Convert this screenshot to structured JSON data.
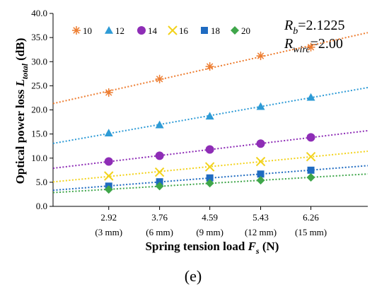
{
  "chart_data": {
    "type": "scatter",
    "x": [
      2.92,
      3.76,
      4.59,
      5.43,
      6.26
    ],
    "x_tick_labels": [
      "2.92",
      "3.76",
      "4.59",
      "5.43",
      "6.26"
    ],
    "x_tick_sublabels": [
      "(3 mm)",
      "(6 mm)",
      "(9 mm)",
      "(12 mm)",
      "(15 mm)"
    ],
    "xlim": [
      2.0,
      7.2
    ],
    "ylim": [
      0.0,
      40.0
    ],
    "y_ticks": [
      "0.0",
      "5.0",
      "10.0",
      "15.0",
      "20.0",
      "25.0",
      "30.0",
      "35.0",
      "40.0"
    ],
    "xlabel_main": "Spring tension load ",
    "xlabel_sym": "F",
    "xlabel_sub": "s",
    "xlabel_unit": " (N)",
    "ylabel_main": "Optical power loss ",
    "ylabel_sym": "L",
    "ylabel_sub": "total",
    "ylabel_unit": " (dB)",
    "grid": false,
    "trendlines": "linear, dotted",
    "legend_position": "top-left",
    "series": [
      {
        "name": "10",
        "marker": "asterisk",
        "color": "#ED7D31",
        "values": [
          23.6,
          26.4,
          29.0,
          31.2,
          33.0
        ]
      },
      {
        "name": "12",
        "marker": "triangle",
        "color": "#2E9BD6",
        "values": [
          15.2,
          16.9,
          18.7,
          20.7,
          22.6
        ]
      },
      {
        "name": "14",
        "marker": "circle",
        "color": "#8E2DB6",
        "values": [
          9.3,
          10.5,
          11.8,
          13.0,
          14.3
        ]
      },
      {
        "name": "16",
        "marker": "x",
        "color": "#F2D21B",
        "values": [
          6.3,
          7.1,
          8.2,
          9.3,
          10.3
        ]
      },
      {
        "name": "18",
        "marker": "square",
        "color": "#1F6BC1",
        "values": [
          4.2,
          5.1,
          5.9,
          6.7,
          7.5
        ]
      },
      {
        "name": "20",
        "marker": "diamond",
        "color": "#3FA64A",
        "values": [
          3.5,
          4.2,
          4.8,
          5.4,
          6.0
        ]
      }
    ],
    "annotations": {
      "rb_sym": "R",
      "rb_sub": "b",
      "rb_val": "=2.1225",
      "rw_sym": "R",
      "rw_sub": "wire",
      "rw_val": "=2.00"
    }
  },
  "panel_label": "(e)"
}
